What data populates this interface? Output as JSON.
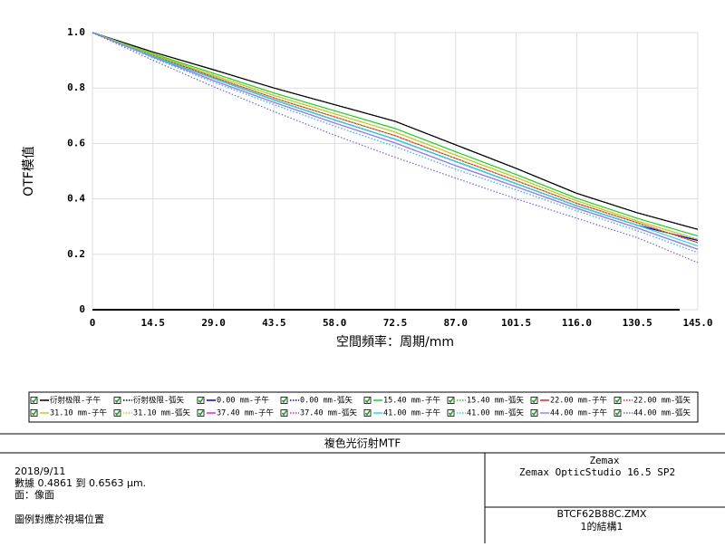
{
  "chart_data": {
    "type": "line",
    "xlabel": "空間頻率：周期/mm",
    "ylabel": "OTF模值",
    "x": [
      0,
      14.5,
      29,
      43.5,
      58,
      72.5,
      87,
      101.5,
      116,
      130.5,
      145
    ],
    "xlim": [
      0,
      145
    ],
    "xticks": [
      0,
      14.5,
      {
        "value": 29,
        "label": "29.0"
      },
      43.5,
      {
        "value": 58,
        "label": "58.0"
      },
      72.5,
      {
        "value": 87,
        "label": "87.0"
      },
      101.5,
      {
        "value": 116,
        "label": "116.0"
      },
      130.5,
      {
        "value": 145,
        "label": "145.0"
      }
    ],
    "ylim": [
      0,
      1
    ],
    "yticks": [
      0,
      0.2,
      0.4,
      0.6,
      0.8,
      {
        "value": 1,
        "label": "1.0"
      }
    ],
    "grid": true,
    "series": [
      {
        "name": "衍射极限-子午",
        "color": "#000000",
        "style": "solid",
        "values": [
          1,
          0.93,
          0.866,
          0.8,
          0.74,
          0.68,
          0.595,
          0.51,
          0.42,
          0.35,
          0.29
        ]
      },
      {
        "name": "衍射极限-弧矢",
        "color": "#000000",
        "style": "dotted",
        "values": [
          1,
          0.93,
          0.866,
          0.8,
          0.74,
          0.68,
          0.595,
          0.51,
          0.42,
          0.35,
          0.29
        ]
      },
      {
        "name": "0.00 mm-子午",
        "color": "#0000dd",
        "style": "solid",
        "values": [
          1,
          0.915,
          0.835,
          0.757,
          0.685,
          0.615,
          0.535,
          0.455,
          0.375,
          0.305,
          0.25
        ]
      },
      {
        "name": "0.00 mm-弧矢",
        "color": "#0000dd",
        "style": "dotted",
        "values": [
          1,
          0.915,
          0.835,
          0.757,
          0.685,
          0.615,
          0.535,
          0.455,
          0.375,
          0.305,
          0.25
        ]
      },
      {
        "name": "15.40 mm-子午",
        "color": "#22cc22",
        "style": "solid",
        "values": [
          1,
          0.924,
          0.853,
          0.782,
          0.718,
          0.654,
          0.57,
          0.488,
          0.402,
          0.33,
          0.266
        ]
      },
      {
        "name": "15.40 mm-弧矢",
        "color": "#22cc22",
        "style": "dotted",
        "values": [
          1,
          0.921,
          0.846,
          0.773,
          0.707,
          0.641,
          0.558,
          0.477,
          0.393,
          0.32,
          0.254
        ]
      },
      {
        "name": "22.00 mm-子午",
        "color": "#ee2222",
        "style": "solid",
        "values": [
          1,
          0.918,
          0.84,
          0.764,
          0.696,
          0.628,
          0.546,
          0.466,
          0.384,
          0.314,
          0.242
        ]
      },
      {
        "name": "22.00 mm-弧矢",
        "color": "#ee2222",
        "style": "dotted",
        "values": [
          1,
          0.918,
          0.84,
          0.764,
          0.696,
          0.628,
          0.546,
          0.466,
          0.384,
          0.314,
          0.242
        ]
      },
      {
        "name": "31.10 mm-子午",
        "color": "#bbcc22",
        "style": "solid",
        "values": [
          1,
          0.921,
          0.846,
          0.773,
          0.707,
          0.641,
          0.558,
          0.477,
          0.393,
          0.32,
          0.254
        ]
      },
      {
        "name": "31.10 mm-弧矢",
        "color": "#bbcc22",
        "style": "dotted",
        "values": [
          1,
          0.918,
          0.84,
          0.764,
          0.696,
          0.628,
          0.546,
          0.466,
          0.384,
          0.314,
          0.242
        ]
      },
      {
        "name": "37.40 mm-子午",
        "color": "#dd22dd",
        "style": "solid",
        "values": [
          1,
          0.912,
          0.827,
          0.748,
          0.674,
          0.602,
          0.52,
          0.444,
          0.366,
          0.295,
          0.218
        ]
      },
      {
        "name": "37.40 mm-弧矢",
        "color": "#dd22dd",
        "style": "dotted",
        "values": [
          1,
          0.909,
          0.821,
          0.74,
          0.663,
          0.589,
          0.507,
          0.433,
          0.357,
          0.285,
          0.206
        ]
      },
      {
        "name": "41.00 mm-子午",
        "color": "#22dddd",
        "style": "solid",
        "values": [
          1,
          0.915,
          0.835,
          0.757,
          0.685,
          0.615,
          0.535,
          0.455,
          0.375,
          0.305,
          0.23
        ]
      },
      {
        "name": "41.00 mm-弧矢",
        "color": "#22dddd",
        "style": "dotted",
        "values": [
          1,
          0.909,
          0.821,
          0.74,
          0.663,
          0.589,
          0.507,
          0.433,
          0.357,
          0.285,
          0.206
        ]
      },
      {
        "name": "44.00 mm-子午",
        "color": "#8888ee",
        "style": "solid",
        "values": [
          1,
          0.912,
          0.827,
          0.748,
          0.674,
          0.602,
          0.52,
          0.444,
          0.366,
          0.295,
          0.218
        ]
      },
      {
        "name": "44.00 mm-弧矢",
        "color": "#6666dd",
        "style": "dotted",
        "values": [
          1,
          0.9,
          0.805,
          0.715,
          0.63,
          0.55,
          0.475,
          0.4,
          0.33,
          0.26,
          0.17
        ]
      }
    ]
  },
  "info": {
    "title": "複色光衍射MTF",
    "date": "2018/9/11",
    "data": "數據 0.4861 到 0.6563 μm.",
    "surface": "面：像面",
    "note": "圖例對應於視場位置",
    "company": "Zemax",
    "product": "Zemax OpticStudio 16.5 SP2",
    "file": "BTCF62B88C.ZMX",
    "config": "1的結構1"
  }
}
